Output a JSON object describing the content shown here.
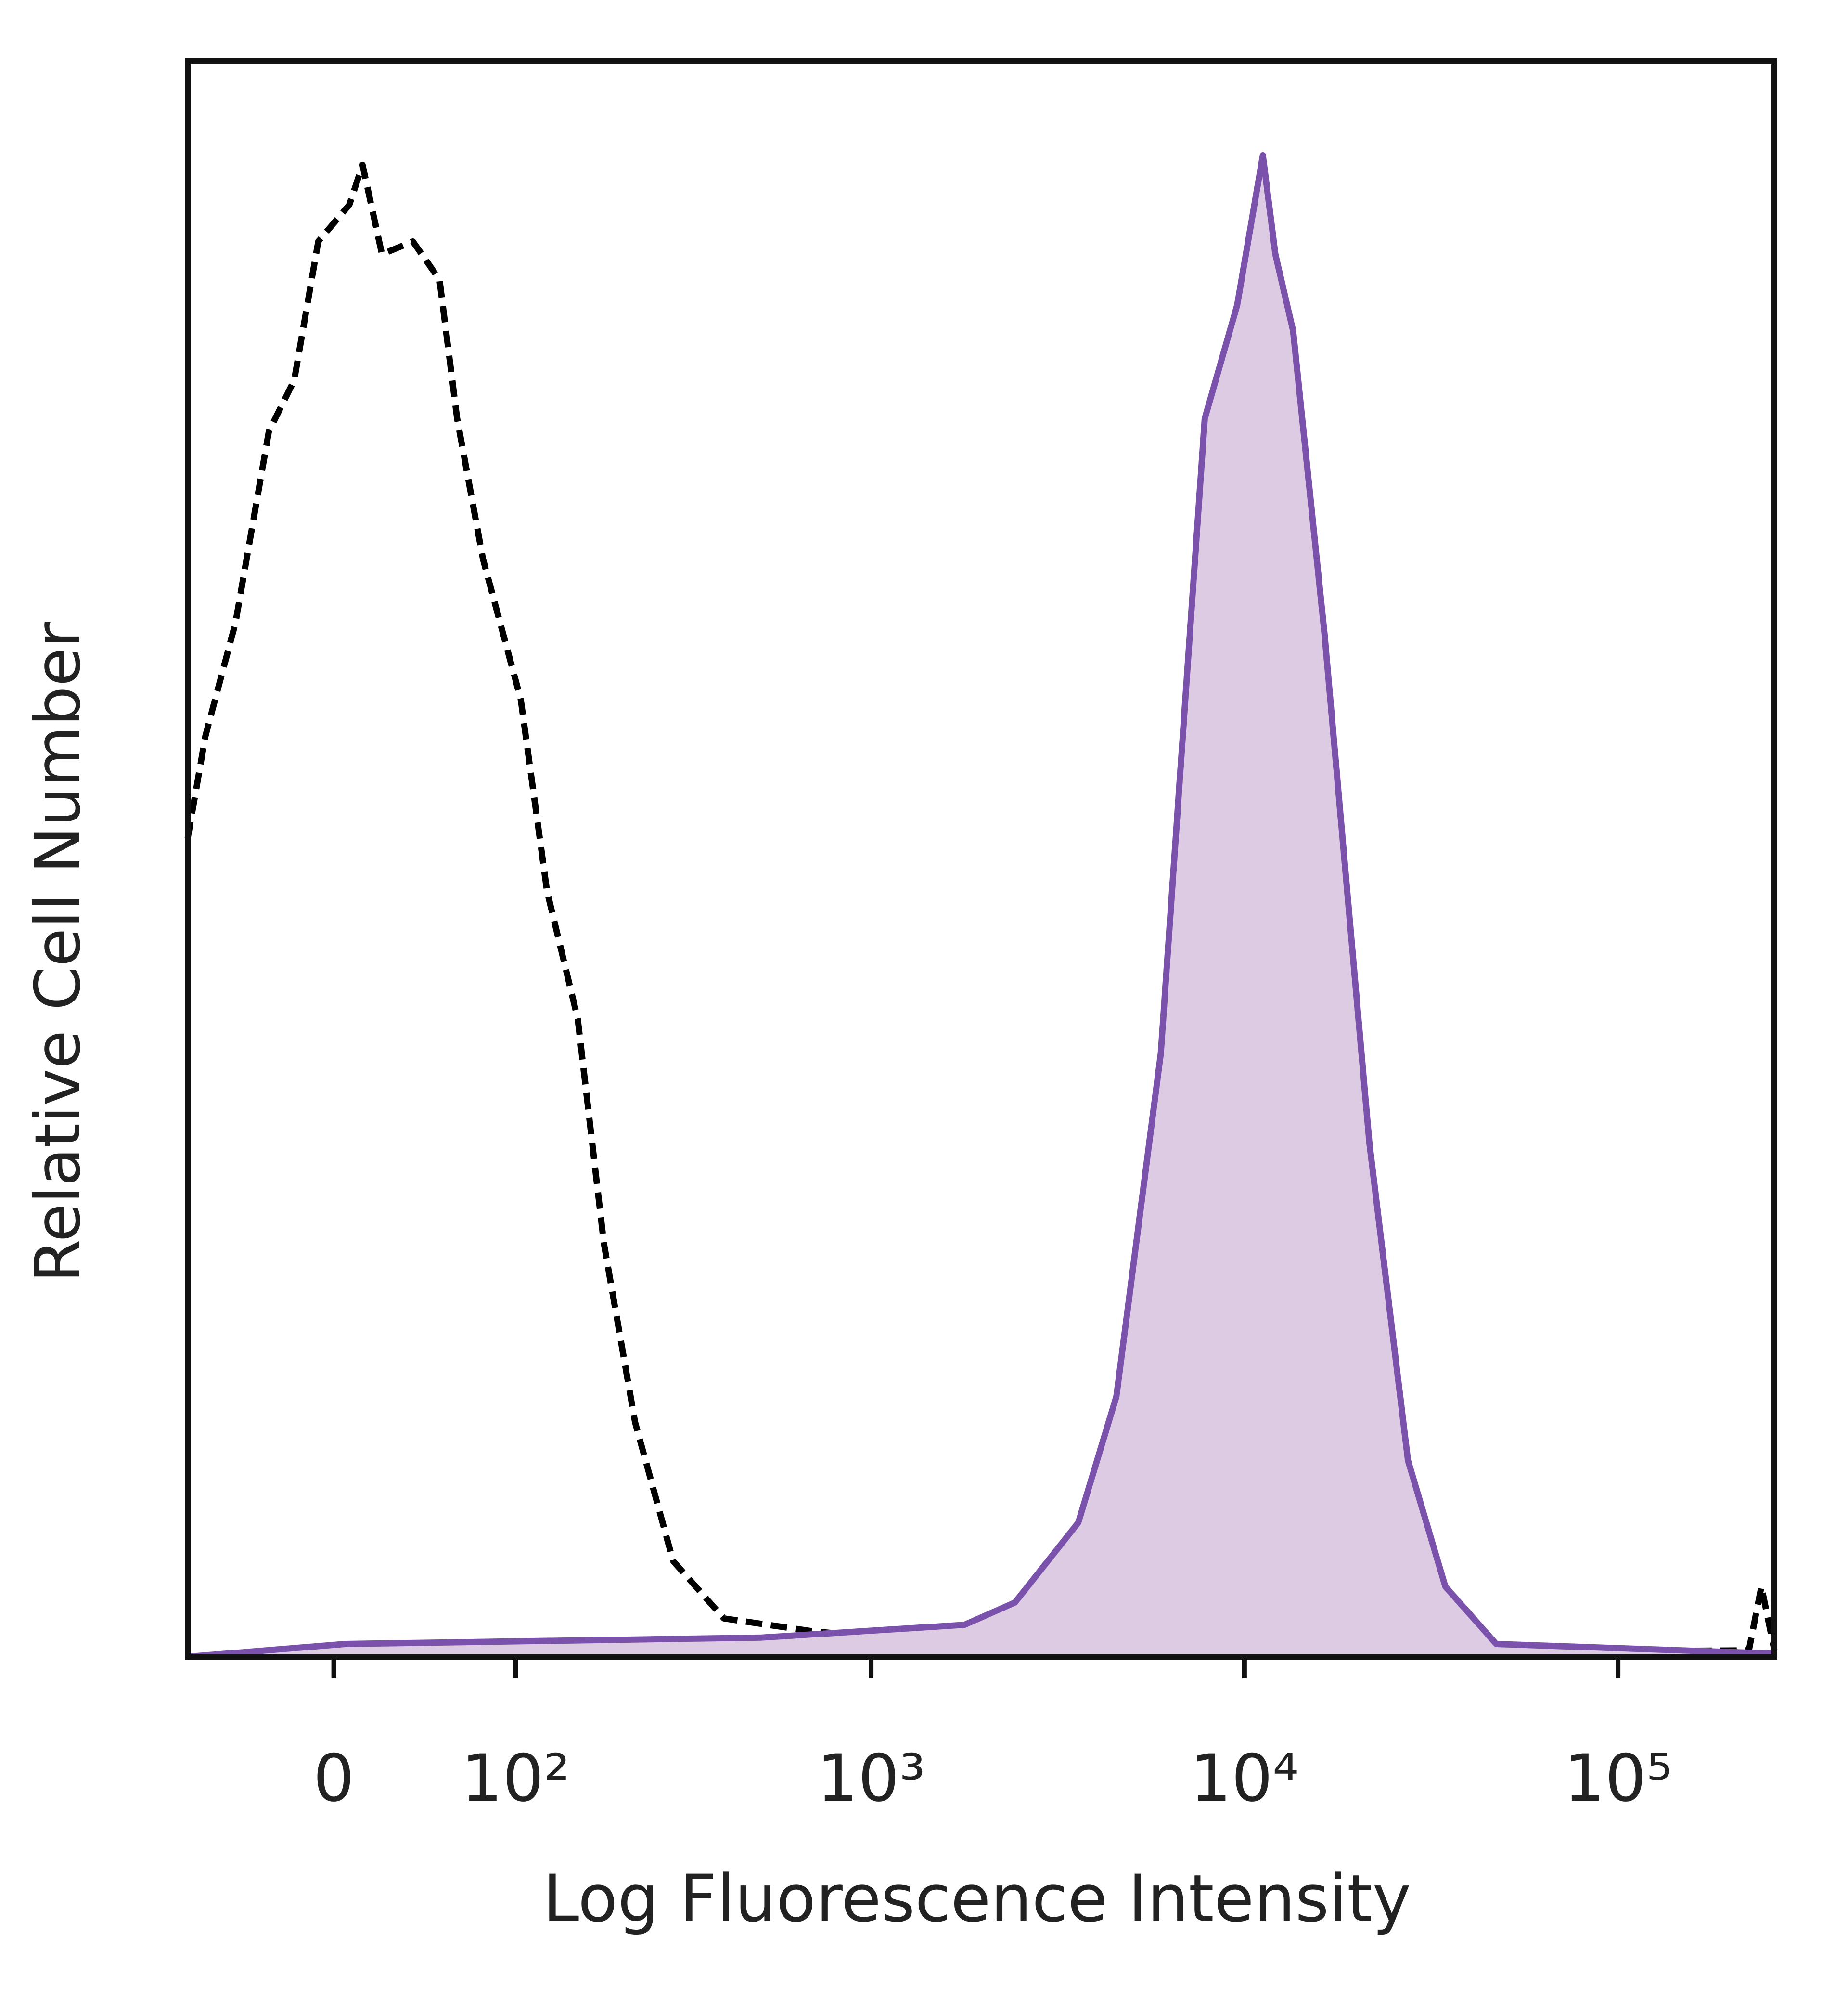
{
  "chart_data": {
    "type": "histogram-overlay",
    "x_label": "Log Fluorescence Intensity",
    "y_label": "Relative Cell Number",
    "xscale": "biexponential",
    "xlim": [
      -75,
      262144
    ],
    "ylim": [
      0,
      100
    ],
    "xticks": [
      0,
      {
        "value": 100,
        "label": "10²"
      },
      {
        "value": 1000,
        "label": "10³"
      },
      {
        "value": 10000,
        "label": "10⁴"
      },
      {
        "value": 100000,
        "label": "10⁵"
      }
    ],
    "series": [
      {
        "color": "#000000",
        "style": "dashed",
        "filled": false,
        "x": [
          -75,
          -64,
          -47,
          -30,
          -18,
          -7,
          7,
          13,
          22,
          37,
          51,
          61,
          77,
          104,
          126,
          156,
          186,
          228,
          291,
          401,
          696,
          2430,
          11500,
          224000,
          242000,
          262144
        ],
        "values": [
          51.3,
          57.7,
          64.8,
          76.8,
          80,
          88.7,
          91,
          93.5,
          87.9,
          88.7,
          86.3,
          77.6,
          68.8,
          60,
          48,
          40,
          25.9,
          14.7,
          6,
          2.4,
          1.6,
          0.4,
          0.2,
          0.4,
          4.4,
          0.4
        ]
      },
      {
        "color": "#7b52ab",
        "fill": "#dccbe2",
        "style": "solid",
        "filled": true,
        "x": [
          -75,
          5,
          507,
          1780,
          2430,
          3590,
          4540,
          5970,
          7830,
          9560,
          11200,
          12100,
          13500,
          16400,
          21600,
          27400,
          34500,
          47200,
          262144
        ],
        "values": [
          0,
          0.8,
          1.2,
          2,
          3.4,
          8.4,
          16.3,
          37.8,
          77.6,
          84.7,
          94.1,
          87.9,
          83.1,
          64,
          32.2,
          12.3,
          4.4,
          0.8,
          0.2
        ]
      }
    ]
  }
}
